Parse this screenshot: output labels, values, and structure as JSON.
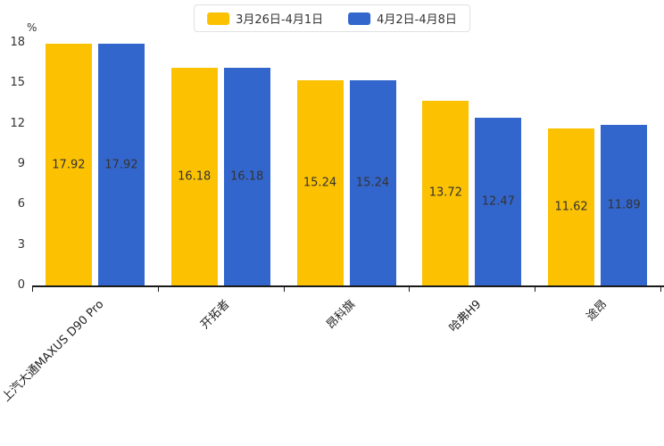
{
  "chart_data": {
    "type": "bar",
    "unit_label": "%",
    "categories": [
      "上汽大通MAXUS D90 Pro",
      "开拓者",
      "昂科旗",
      "哈弗H9",
      "途昂"
    ],
    "series": [
      {
        "name": "3月26日-4月1日",
        "color": "#FCC202",
        "values": [
          17.92,
          16.18,
          15.24,
          13.72,
          11.62
        ]
      },
      {
        "name": "4月2日-4月8日",
        "color": "#3366CC",
        "values": [
          17.92,
          16.18,
          15.24,
          12.47,
          11.89
        ]
      }
    ],
    "ylim": [
      0,
      18
    ],
    "yticks": [
      0,
      3,
      6,
      9,
      12,
      15,
      18
    ],
    "legend_position": "top",
    "grid": false,
    "value_label_color": "#333333",
    "axis_color": "#1a1a1a"
  }
}
